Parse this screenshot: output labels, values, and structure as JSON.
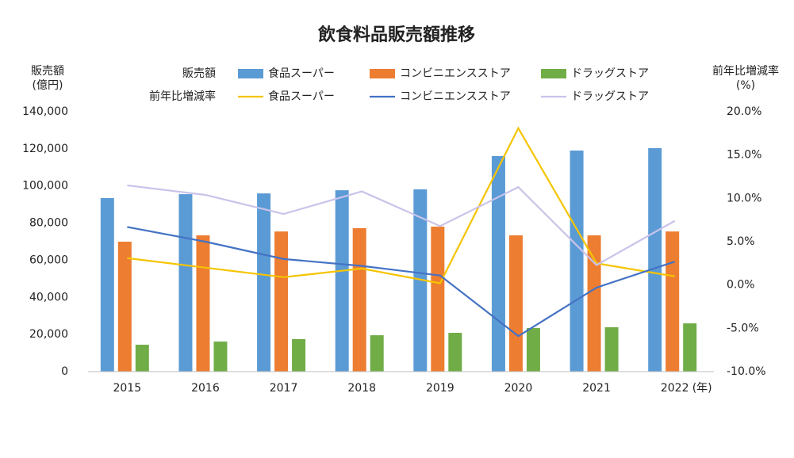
{
  "chart_data": {
    "type": "bar-line",
    "title": "飲食料品販売額推移",
    "ylabel": [
      "販売額",
      "(億円)"
    ],
    "y2label": [
      "前年比増減率",
      "(%)"
    ],
    "xlabel": "(年)",
    "legend_groups": [
      "販売額",
      "前年比増減率"
    ],
    "categories": [
      "2015",
      "2016",
      "2017",
      "2018",
      "2019",
      "2020",
      "2021",
      "2022"
    ],
    "series": [
      {
        "name": "食品スーパー",
        "color": "#5b9bd5",
        "kind": "bar",
        "values": [
          93500,
          95600,
          96000,
          97700,
          98200,
          116100,
          119100,
          120400
        ]
      },
      {
        "name": "コンビニエンスストア",
        "color": "#ed7d31",
        "kind": "bar",
        "values": [
          70000,
          73400,
          75500,
          77300,
          78100,
          73400,
          73400,
          75500
        ]
      },
      {
        "name": "ドラッグストア",
        "color": "#70ad47",
        "kind": "bar",
        "values": [
          14500,
          16200,
          17500,
          19600,
          20900,
          23500,
          23900,
          26000
        ]
      },
      {
        "name": "食品スーパー",
        "color": "#f5c400",
        "kind": "line",
        "axis": "y2",
        "values": [
          3.1,
          2.0,
          0.9,
          1.9,
          0.2,
          18.1,
          2.5,
          1.0
        ]
      },
      {
        "name": "コンビニエンスストア",
        "color": "#4472c4",
        "kind": "line",
        "axis": "y2",
        "values": [
          6.7,
          5.0,
          3.0,
          2.2,
          1.1,
          -5.9,
          -0.3,
          2.7
        ]
      },
      {
        "name": "ドラッグストア",
        "color": "#c9c3ea",
        "kind": "line",
        "axis": "y2",
        "values": [
          11.5,
          10.4,
          8.2,
          10.8,
          6.8,
          11.3,
          2.3,
          7.4
        ]
      }
    ],
    "ylim": [
      0,
      140000
    ],
    "yticks": [
      0,
      {
        "value": 20000,
        "label": "20,000"
      },
      {
        "value": 40000,
        "label": "40,000"
      },
      {
        "value": 60000,
        "label": "60,000"
      },
      {
        "value": 80000,
        "label": "80,000"
      },
      {
        "value": 100000,
        "label": "100,000"
      },
      {
        "value": 120000,
        "label": "120,000"
      },
      {
        "value": 140000,
        "label": "140,000"
      }
    ],
    "y2lim": [
      -10,
      20
    ],
    "y2ticks": [
      {
        "value": -10,
        "label": "-10.0%"
      },
      {
        "value": -5,
        "label": "-5.0%"
      },
      {
        "value": 0,
        "label": "0.0%"
      },
      {
        "value": 5,
        "label": "5.0%"
      },
      {
        "value": 10,
        "label": "10.0%"
      },
      {
        "value": 15,
        "label": "15.0%"
      },
      {
        "value": 20,
        "label": "20.0%"
      }
    ],
    "grid": false
  }
}
